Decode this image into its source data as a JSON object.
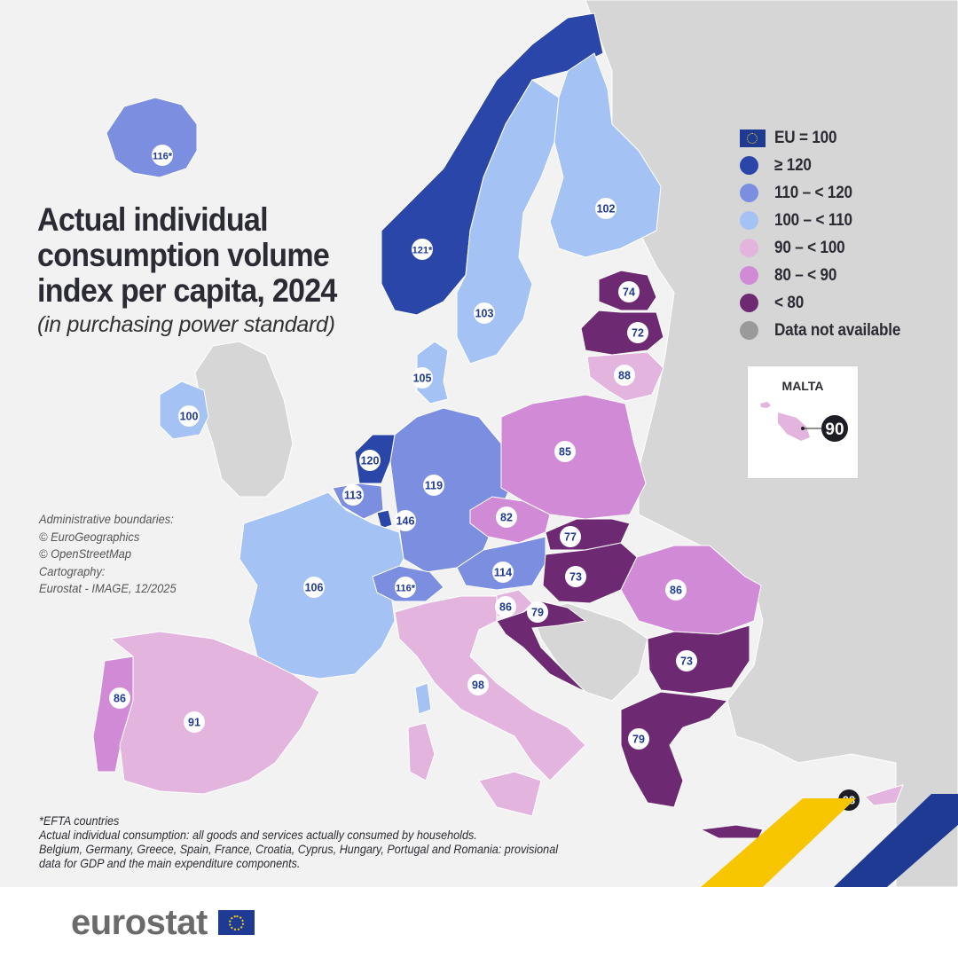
{
  "title": "Actual individual consumption volume index per capita, 2024",
  "title_lines": [
    "Actual individual",
    "consumption volume",
    "index per capita, 2024"
  ],
  "subtitle": "(in purchasing power standard)",
  "sources": [
    "Administrative boundaries:",
    "© EuroGeographics",
    "© OpenStreetMap",
    "Cartography:",
    "Eurostat - IMAGE, 12/2025"
  ],
  "legend": {
    "reference": "EU = 100",
    "classes": [
      {
        "label": "≥ 120",
        "color": "#2a46a8"
      },
      {
        "label": "110 – < 120",
        "color": "#7b8ee0"
      },
      {
        "label": "100 – < 110",
        "color": "#a4c2f4"
      },
      {
        "label": "90 – < 100",
        "color": "#e2b4de"
      },
      {
        "label": "80 – < 90",
        "color": "#d18ad6"
      },
      {
        "label": "< 80",
        "color": "#6d2a72"
      },
      {
        "label": "Data not available",
        "color": "#9a9a9a"
      }
    ]
  },
  "inset": {
    "title": "MALTA",
    "value": "90"
  },
  "regions": [
    {
      "name": "Iceland",
      "value": "116*"
    },
    {
      "name": "Norway",
      "value": "121*"
    },
    {
      "name": "Sweden",
      "value": "103"
    },
    {
      "name": "Finland",
      "value": "102"
    },
    {
      "name": "Estonia",
      "value": "74"
    },
    {
      "name": "Latvia",
      "value": "72"
    },
    {
      "name": "Lithuania",
      "value": "88"
    },
    {
      "name": "Denmark",
      "value": "105"
    },
    {
      "name": "Ireland",
      "value": "100"
    },
    {
      "name": "Netherlands",
      "value": "120"
    },
    {
      "name": "Belgium",
      "value": "113"
    },
    {
      "name": "Luxembourg",
      "value": "146"
    },
    {
      "name": "Germany",
      "value": "119"
    },
    {
      "name": "Poland",
      "value": "85"
    },
    {
      "name": "Czechia",
      "value": "82"
    },
    {
      "name": "Slovakia",
      "value": "77"
    },
    {
      "name": "Austria",
      "value": "114"
    },
    {
      "name": "Hungary",
      "value": "73"
    },
    {
      "name": "Romania",
      "value": "86"
    },
    {
      "name": "France",
      "value": "106"
    },
    {
      "name": "Switzerland",
      "value": "116*"
    },
    {
      "name": "Slovenia",
      "value": "86"
    },
    {
      "name": "Croatia",
      "value": "79"
    },
    {
      "name": "Bulgaria",
      "value": "73"
    },
    {
      "name": "Italy",
      "value": "98"
    },
    {
      "name": "Portugal",
      "value": "86"
    },
    {
      "name": "Spain",
      "value": "91"
    },
    {
      "name": "Greece",
      "value": "79"
    },
    {
      "name": "Cyprus",
      "value": "98"
    }
  ],
  "footnotes": [
    "*EFTA countries",
    "Actual individual consumption: all goods and services actually consumed by households.",
    "Belgium, Germany, Greece, Spain, France, Croatia, Cyprus, Hungary, Portugal and Romania: provisional",
    "data for GDP and the main expenditure components."
  ],
  "logo": "eurostat",
  "colors": {
    "sea": "#f2f2f2",
    "land_other": "#d6d6d6",
    "accent_blue": "#1f3a93",
    "accent_yellow": "#f7c600"
  }
}
